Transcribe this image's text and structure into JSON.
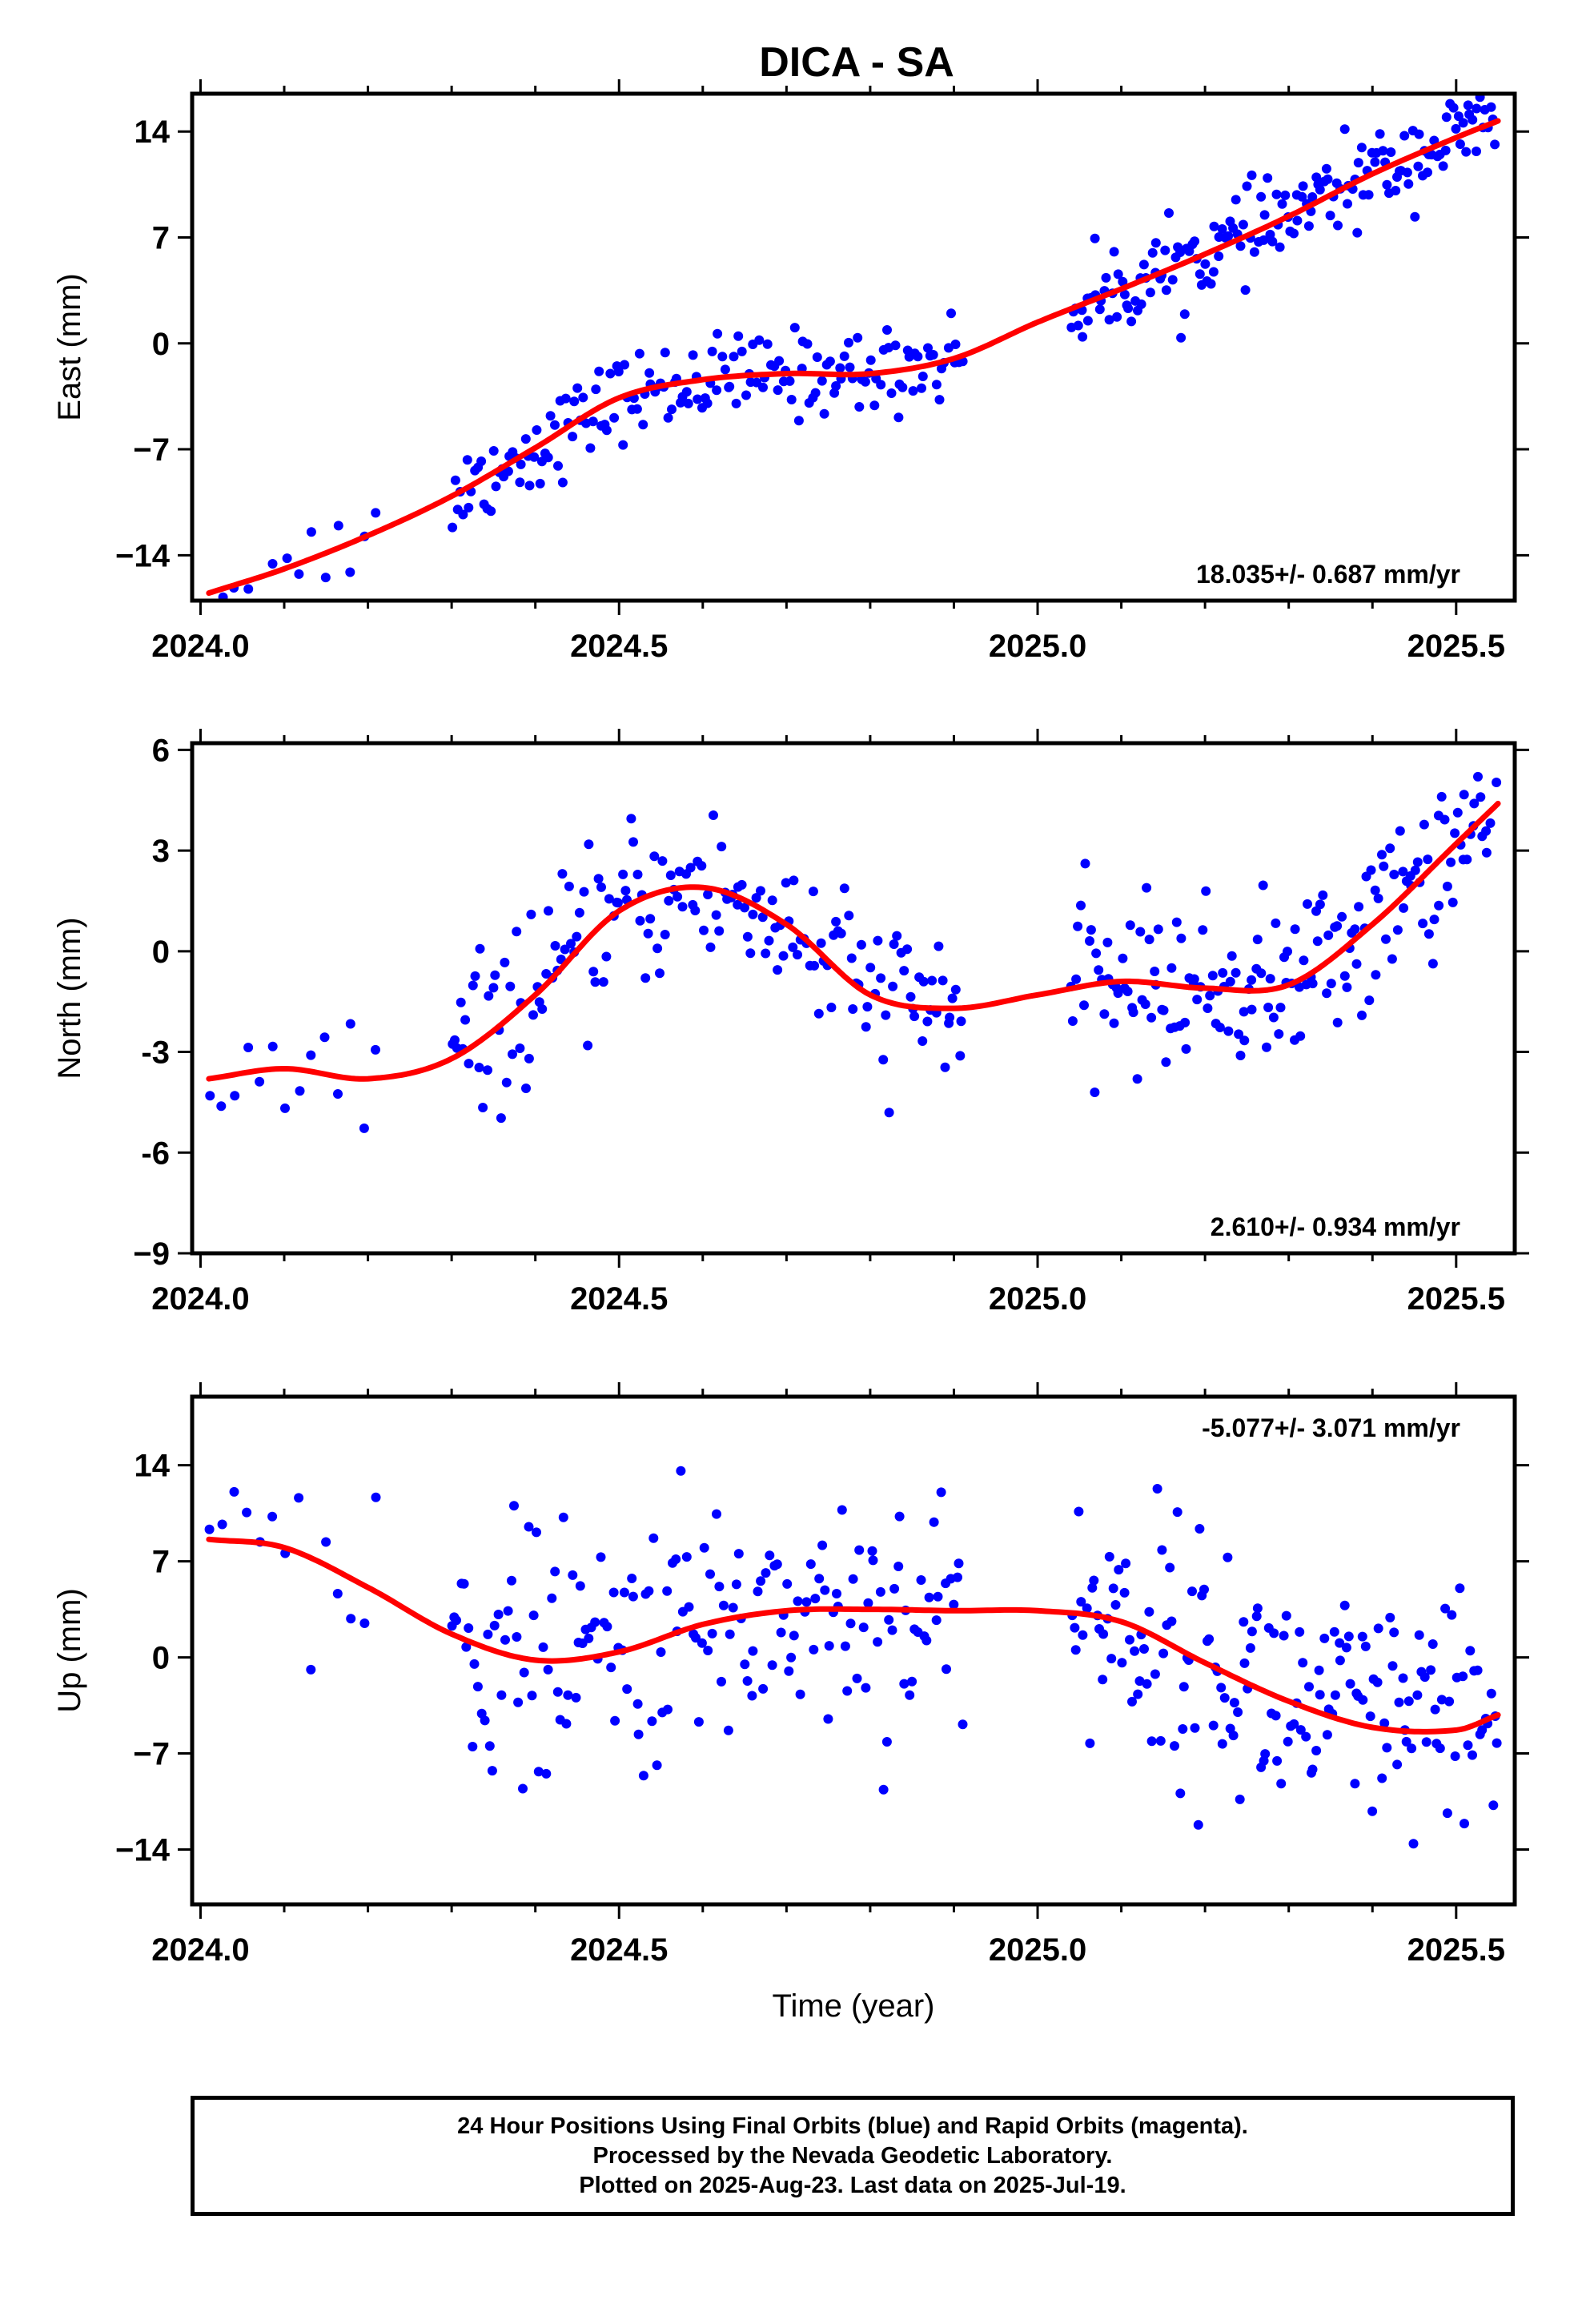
{
  "title": "DICA - SA",
  "footer": {
    "line1": "24 Hour Positions Using Final Orbits (blue) and Rapid Orbits (magenta).",
    "line2": "Processed by the Nevada Geodetic Laboratory.",
    "line3": "Plotted on 2025-Aug-23. Last data on 2025-Jul-19."
  },
  "colors": {
    "points": "#0000ff",
    "fit": "#ff0000",
    "frame": "#000000"
  },
  "chart_data": [
    {
      "type": "scatter",
      "ylabel": "East (mm)",
      "xlabel": "",
      "xlim": [
        2023.99,
        2025.57
      ],
      "ylim": [
        -17.0,
        16.5
      ],
      "x_ticks": [
        2024.0,
        2024.5,
        2025.0,
        2025.5
      ],
      "x_tick_labels": [
        "2024.0",
        "2024.5",
        "2025.0",
        "2025.5"
      ],
      "y_ticks": [
        -14,
        -7,
        0,
        7,
        14
      ],
      "y_tick_labels": [
        "−14",
        "−7",
        "0",
        "7",
        "14"
      ],
      "velocity": "18.035+/- 0.687 mm/yr",
      "velocity_position": "bottom-right",
      "fit": {
        "x": [
          2024.01,
          2024.1,
          2024.2,
          2024.3,
          2024.4,
          2024.5,
          2024.6,
          2024.7,
          2024.8,
          2024.9,
          2025.0,
          2025.1,
          2025.2,
          2025.3,
          2025.4,
          2025.5,
          2025.55
        ],
        "y": [
          -16.5,
          -14.9,
          -12.7,
          -10.1,
          -6.9,
          -3.6,
          -2.4,
          -2.0,
          -2.0,
          -1.0,
          1.4,
          3.6,
          5.9,
          8.4,
          11.2,
          13.6,
          14.7
        ]
      }
    },
    {
      "type": "scatter",
      "ylabel": "North (mm)",
      "xlabel": "",
      "xlim": [
        2023.99,
        2025.57
      ],
      "ylim": [
        -9.0,
        6.2
      ],
      "x_ticks": [
        2024.0,
        2024.5,
        2025.0,
        2025.5
      ],
      "x_tick_labels": [
        "2024.0",
        "2024.5",
        "2025.0",
        "2025.5"
      ],
      "y_ticks": [
        -9,
        -6,
        -3,
        0,
        3,
        6
      ],
      "y_tick_labels": [
        "−9",
        "-6",
        "-3",
        "0",
        "3",
        "6"
      ],
      "velocity": "2.610+/- 0.934 mm/yr",
      "velocity_position": "bottom-right",
      "fit": {
        "x": [
          2024.01,
          2024.1,
          2024.2,
          2024.3,
          2024.4,
          2024.5,
          2024.6,
          2024.7,
          2024.8,
          2024.9,
          2025.0,
          2025.1,
          2025.2,
          2025.3,
          2025.4,
          2025.5,
          2025.55
        ],
        "y": [
          -3.8,
          -3.5,
          -3.8,
          -3.2,
          -1.3,
          1.2,
          1.9,
          0.8,
          -1.3,
          -1.7,
          -1.3,
          -0.9,
          -1.1,
          -1.0,
          0.8,
          3.2,
          4.4
        ]
      }
    },
    {
      "type": "scatter",
      "ylabel": "Up (mm)",
      "xlabel": "Time (year)",
      "xlim": [
        2023.99,
        2025.57
      ],
      "ylim": [
        -18.0,
        19.0
      ],
      "x_ticks": [
        2024.0,
        2024.5,
        2025.0,
        2025.5
      ],
      "x_tick_labels": [
        "2024.0",
        "2024.5",
        "2025.0",
        "2025.5"
      ],
      "y_ticks": [
        -14,
        -7,
        0,
        7,
        14
      ],
      "y_tick_labels": [
        "−14",
        "−7",
        "0",
        "7",
        "14"
      ],
      "velocity": "-5.077+/- 3.071 mm/yr",
      "velocity_position": "top-right",
      "fit": {
        "x": [
          2024.01,
          2024.1,
          2024.2,
          2024.3,
          2024.4,
          2024.5,
          2024.6,
          2024.7,
          2024.8,
          2024.9,
          2025.0,
          2025.1,
          2025.2,
          2025.3,
          2025.4,
          2025.5,
          2025.55
        ],
        "y": [
          8.6,
          8.0,
          5.1,
          1.7,
          -0.2,
          0.4,
          2.4,
          3.4,
          3.5,
          3.4,
          3.4,
          2.6,
          -0.4,
          -3.2,
          -5.1,
          -5.3,
          -4.2
        ]
      }
    }
  ]
}
